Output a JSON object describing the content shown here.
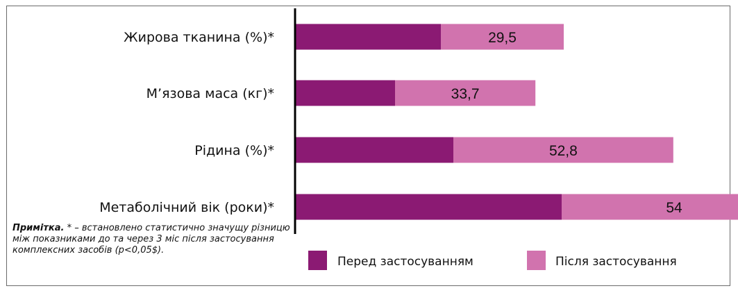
{
  "chart_data": {
    "type": "bar",
    "orientation": "horizontal",
    "stacked": true,
    "categories": [
      "Жирова тканина (%)*",
      "М’язова маса (кг)*",
      "Рідина (%)*",
      "Метаболічний вік (роки)*"
    ],
    "series": [
      {
        "name": "Перед застосуванням",
        "color": "#8b1a73",
        "values": [
          35,
          24,
          38,
          64
        ]
      },
      {
        "name": "Після застосування",
        "color": "#d173ae",
        "values": [
          29.5,
          33.7,
          52.8,
          54
        ]
      }
    ],
    "data_labels": [
      "29,5",
      "33,7",
      "52,8",
      "54"
    ],
    "xlim": [
      0,
      120
    ],
    "grid": false,
    "legend": "bottom"
  },
  "note": {
    "label": "Примітка.",
    "text": " * – встановлено статистично значущу різницю між показниками до та через 3 міс після застосування комплексних засобів (р<0,05$)."
  }
}
